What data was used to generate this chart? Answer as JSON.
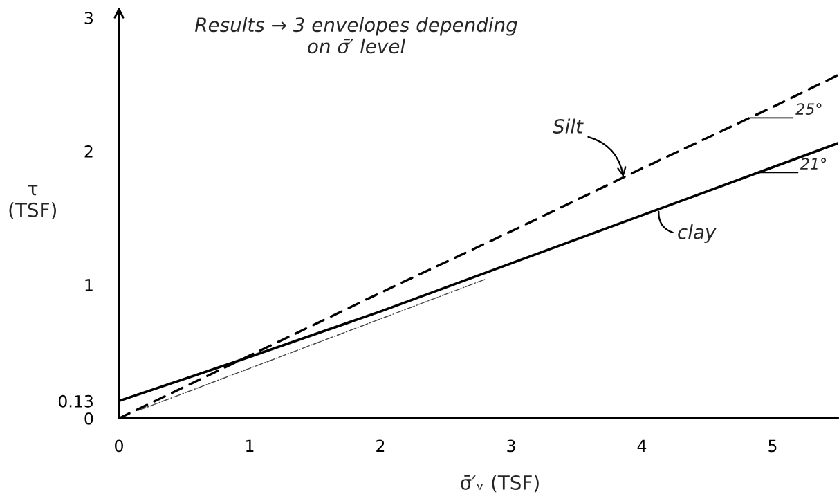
{
  "chart_data": {
    "type": "line",
    "title": "Results → 3 envelopes depending\non σ̄′ level",
    "xlabel": "σ̄′ᵥ (TSF)",
    "ylabel": "τ\n(TSF)",
    "series": [
      {
        "color": "#000000",
        "line_style": "dashed",
        "x": [
          0,
          1,
          2,
          3,
          4,
          5,
          5.5
        ],
        "values": [
          0,
          0.47,
          0.94,
          1.4,
          1.87,
          2.33,
          2.57
        ]
      },
      {
        "color": "#000000",
        "line_style": "solid",
        "x": [
          0,
          1,
          2,
          3,
          4,
          5,
          5.5
        ],
        "values": [
          0.13,
          0.46,
          0.8,
          1.16,
          1.52,
          1.88,
          2.06
        ]
      },
      {
        "color": "#444444",
        "line_style": "dotted",
        "x": [
          0.15,
          2.8
        ],
        "values": [
          0.06,
          1.04
        ]
      }
    ],
    "annotations": [
      {
        "text": "Silt",
        "x": 3.86,
        "y": 1.8
      },
      {
        "text": "clay",
        "x": 4.13,
        "y": 1.57
      },
      {
        "text": "25°",
        "x": 4.83,
        "y": 2.25
      },
      {
        "text": "21°",
        "x": 4.88,
        "y": 1.84
      }
    ],
    "xlim": [
      0,
      5.5
    ],
    "ylim": [
      0,
      3.05
    ],
    "xticks": [
      0,
      1,
      2,
      3,
      4,
      5
    ],
    "yticks": [
      0,
      0.13,
      1,
      2,
      3
    ]
  }
}
